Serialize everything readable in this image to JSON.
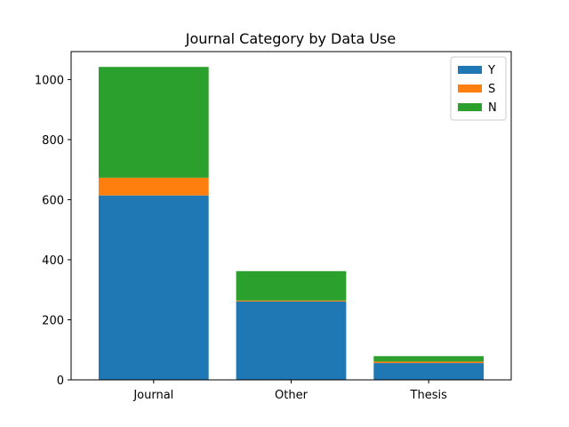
{
  "chart_data": {
    "type": "bar",
    "stacked": true,
    "title": "Journal Category by Data Use",
    "xlabel": "",
    "ylabel": "",
    "categories": [
      "Journal",
      "Other",
      "Thesis"
    ],
    "series": [
      {
        "name": "Y",
        "values": [
          614,
          261,
          56
        ],
        "color": "#1f77b4"
      },
      {
        "name": "S",
        "values": [
          59,
          3,
          5
        ],
        "color": "#ff7f0e"
      },
      {
        "name": "N",
        "values": [
          369,
          98,
          18
        ],
        "color": "#2ca02c"
      }
    ],
    "ylim": [
      0,
      1093
    ],
    "yticks": [
      0,
      200,
      400,
      600,
      800,
      1000
    ],
    "grid": false,
    "legend_position": "top-right"
  }
}
